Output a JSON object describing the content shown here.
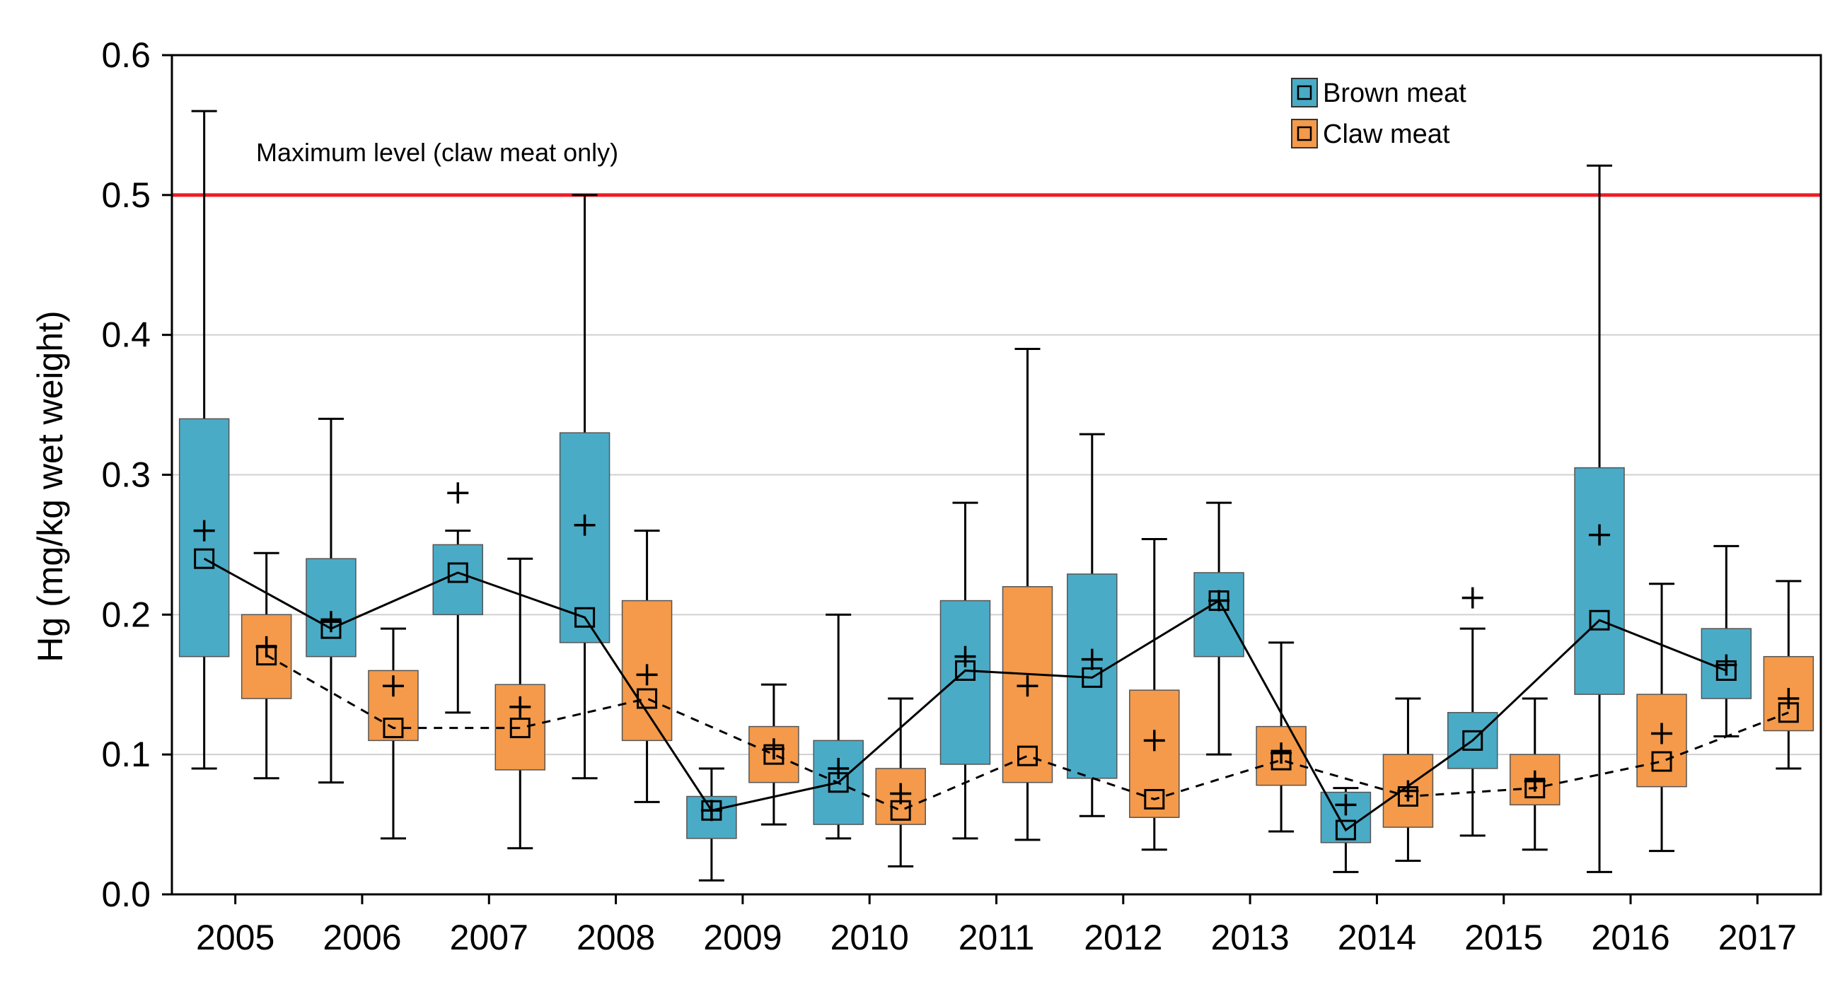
{
  "chart_data": {
    "type": "box",
    "title": "",
    "xlabel": "",
    "ylabel": "Hg (mg/kg wet weight)",
    "ylim": [
      0,
      0.6
    ],
    "yticks": [
      "0.0",
      "0.1",
      "0.2",
      "0.3",
      "0.4",
      "0.5",
      "0.6"
    ],
    "grid": "horizontal",
    "legend_position": "top-right",
    "categories": [
      "2005",
      "2006",
      "2007",
      "2008",
      "2009",
      "2010",
      "2011",
      "2012",
      "2013",
      "2014",
      "2015",
      "2016",
      "2017"
    ],
    "reference_line": {
      "value": 0.5,
      "label": "Maximum level (claw meat only)",
      "color": "#ee1c25"
    },
    "series": [
      {
        "name": "Brown meat",
        "color": "#4aabc6",
        "median_line": "solid",
        "boxes": [
          {
            "min": 0.09,
            "q1": 0.17,
            "median": 0.24,
            "q3": 0.34,
            "max": 0.56,
            "mean": 0.26
          },
          {
            "min": 0.08,
            "q1": 0.17,
            "median": 0.19,
            "q3": 0.24,
            "max": 0.34,
            "mean": 0.195
          },
          {
            "min": 0.13,
            "q1": 0.2,
            "median": 0.23,
            "q3": 0.25,
            "max": 0.26,
            "mean": 0.287
          },
          {
            "min": 0.083,
            "q1": 0.18,
            "median": 0.198,
            "q3": 0.33,
            "max": 0.5,
            "mean": 0.264
          },
          {
            "min": 0.01,
            "q1": 0.04,
            "median": 0.06,
            "q3": 0.07,
            "max": 0.09,
            "mean": 0.06
          },
          {
            "min": 0.04,
            "q1": 0.05,
            "median": 0.08,
            "q3": 0.11,
            "max": 0.2,
            "mean": 0.09
          },
          {
            "min": 0.04,
            "q1": 0.093,
            "median": 0.16,
            "q3": 0.21,
            "max": 0.28,
            "mean": 0.17
          },
          {
            "min": 0.056,
            "q1": 0.083,
            "median": 0.155,
            "q3": 0.229,
            "max": 0.329,
            "mean": 0.168
          },
          {
            "min": 0.1,
            "q1": 0.17,
            "median": 0.21,
            "q3": 0.23,
            "max": 0.28,
            "mean": 0.21
          },
          {
            "min": 0.016,
            "q1": 0.037,
            "median": 0.046,
            "q3": 0.073,
            "max": 0.076,
            "mean": 0.064
          },
          {
            "min": 0.042,
            "q1": 0.09,
            "median": 0.11,
            "q3": 0.13,
            "max": 0.19,
            "mean": 0.212
          },
          {
            "min": 0.016,
            "q1": 0.143,
            "median": 0.196,
            "q3": 0.305,
            "max": 0.521,
            "mean": 0.257
          },
          {
            "min": 0.113,
            "q1": 0.14,
            "median": 0.16,
            "q3": 0.19,
            "max": 0.249,
            "mean": 0.164
          }
        ]
      },
      {
        "name": "Claw meat",
        "color": "#f49a4a",
        "median_line": "dashed",
        "boxes": [
          {
            "min": 0.083,
            "q1": 0.14,
            "median": 0.171,
            "q3": 0.2,
            "max": 0.244,
            "mean": 0.177
          },
          {
            "min": 0.04,
            "q1": 0.11,
            "median": 0.119,
            "q3": 0.16,
            "max": 0.19,
            "mean": 0.149
          },
          {
            "min": 0.033,
            "q1": 0.089,
            "median": 0.119,
            "q3": 0.15,
            "max": 0.24,
            "mean": 0.134
          },
          {
            "min": 0.066,
            "q1": 0.11,
            "median": 0.14,
            "q3": 0.21,
            "max": 0.26,
            "mean": 0.157
          },
          {
            "min": 0.05,
            "q1": 0.08,
            "median": 0.1,
            "q3": 0.12,
            "max": 0.15,
            "mean": 0.104
          },
          {
            "min": 0.02,
            "q1": 0.05,
            "median": 0.06,
            "q3": 0.09,
            "max": 0.14,
            "mean": 0.072
          },
          {
            "min": 0.039,
            "q1": 0.08,
            "median": 0.099,
            "q3": 0.22,
            "max": 0.39,
            "mean": 0.149
          },
          {
            "min": 0.032,
            "q1": 0.055,
            "median": 0.068,
            "q3": 0.146,
            "max": 0.254,
            "mean": 0.11
          },
          {
            "min": 0.045,
            "q1": 0.078,
            "median": 0.096,
            "q3": 0.12,
            "max": 0.18,
            "mean": 0.101
          },
          {
            "min": 0.024,
            "q1": 0.048,
            "median": 0.07,
            "q3": 0.1,
            "max": 0.14,
            "mean": 0.074
          },
          {
            "min": 0.032,
            "q1": 0.064,
            "median": 0.076,
            "q3": 0.1,
            "max": 0.14,
            "mean": 0.081
          },
          {
            "min": 0.031,
            "q1": 0.077,
            "median": 0.095,
            "q3": 0.143,
            "max": 0.222,
            "mean": 0.115
          },
          {
            "min": 0.09,
            "q1": 0.117,
            "median": 0.13,
            "q3": 0.17,
            "max": 0.224,
            "mean": 0.14
          }
        ]
      }
    ]
  }
}
